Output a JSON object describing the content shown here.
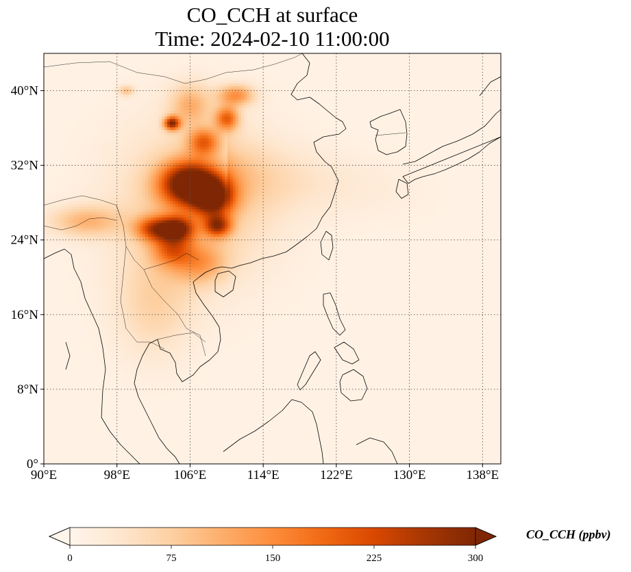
{
  "title_line1": "CO_CCH at surface",
  "title_line2": "Time: 2024-02-10 11:00:00",
  "map": {
    "lon_range": [
      90,
      140
    ],
    "lat_range": [
      0,
      44
    ],
    "lon_ticks": [
      {
        "value": 90,
        "label": "90°E"
      },
      {
        "value": 98,
        "label": "98°E"
      },
      {
        "value": 106,
        "label": "106°E"
      },
      {
        "value": 114,
        "label": "114°E"
      },
      {
        "value": 122,
        "label": "122°E"
      },
      {
        "value": 130,
        "label": "130°E"
      },
      {
        "value": 138,
        "label": "138°E"
      }
    ],
    "lat_ticks": [
      {
        "value": 0,
        "label": "0°"
      },
      {
        "value": 8,
        "label": "8°N"
      },
      {
        "value": 16,
        "label": "16°N"
      },
      {
        "value": 24,
        "label": "24°N"
      },
      {
        "value": 32,
        "label": "32°N"
      },
      {
        "value": 40,
        "label": "40°N"
      }
    ],
    "gridlines": "dotted",
    "field": "CO_CCH",
    "plumes": [
      {
        "lon": 106.0,
        "lat": 30.0,
        "sx": 2.2,
        "sy": 1.6,
        "value": 320
      },
      {
        "lon": 108.5,
        "lat": 28.5,
        "sx": 1.5,
        "sy": 1.4,
        "value": 240
      },
      {
        "lon": 104.5,
        "lat": 25.2,
        "sx": 1.3,
        "sy": 0.9,
        "value": 240
      },
      {
        "lon": 102.0,
        "lat": 25.2,
        "sx": 1.4,
        "sy": 0.9,
        "value": 170
      },
      {
        "lon": 104.0,
        "lat": 36.5,
        "sx": 0.6,
        "sy": 0.5,
        "value": 250
      },
      {
        "lon": 107.5,
        "lat": 34.5,
        "sx": 1.2,
        "sy": 1.0,
        "value": 150
      },
      {
        "lon": 110.0,
        "lat": 37.0,
        "sx": 0.9,
        "sy": 0.9,
        "value": 170
      },
      {
        "lon": 111.0,
        "lat": 39.5,
        "sx": 1.4,
        "sy": 0.8,
        "value": 130
      },
      {
        "lon": 106.0,
        "lat": 38.5,
        "sx": 1.6,
        "sy": 1.6,
        "value": 90
      },
      {
        "lon": 104.0,
        "lat": 23.0,
        "sx": 1.5,
        "sy": 1.2,
        "value": 130
      },
      {
        "lon": 107.0,
        "lat": 21.5,
        "sx": 2.0,
        "sy": 1.5,
        "value": 90
      },
      {
        "lon": 94.5,
        "lat": 26.0,
        "sx": 2.8,
        "sy": 1.2,
        "value": 90
      },
      {
        "lon": 109.0,
        "lat": 25.5,
        "sx": 1.0,
        "sy": 0.8,
        "value": 200
      },
      {
        "lon": 102.0,
        "lat": 17.0,
        "sx": 3.0,
        "sy": 4.0,
        "value": 55
      },
      {
        "lon": 106.5,
        "lat": 28.0,
        "sx": 6.0,
        "sy": 6.0,
        "value": 80
      },
      {
        "lon": 99.0,
        "lat": 40.0,
        "sx": 0.6,
        "sy": 0.4,
        "value": 80
      }
    ],
    "outflow": {
      "from_lon": 110,
      "to_lon": 135,
      "lat_start": 31,
      "lat_slope": -0.08,
      "value": 45
    }
  },
  "colorbar": {
    "colors": [
      "#fff5eb",
      "#fee6ce",
      "#fdd0a2",
      "#fdae6b",
      "#fd8d3c",
      "#f16913",
      "#d94801",
      "#a63603",
      "#7f2704"
    ],
    "range": [
      0,
      300
    ],
    "extend": "both",
    "ticks": [
      {
        "value": 0,
        "label": "0"
      },
      {
        "value": 75,
        "label": "75"
      },
      {
        "value": 150,
        "label": "150"
      },
      {
        "value": 225,
        "label": "225"
      },
      {
        "value": 300,
        "label": "300"
      }
    ],
    "label": "CO_CCH (ppbv)"
  }
}
